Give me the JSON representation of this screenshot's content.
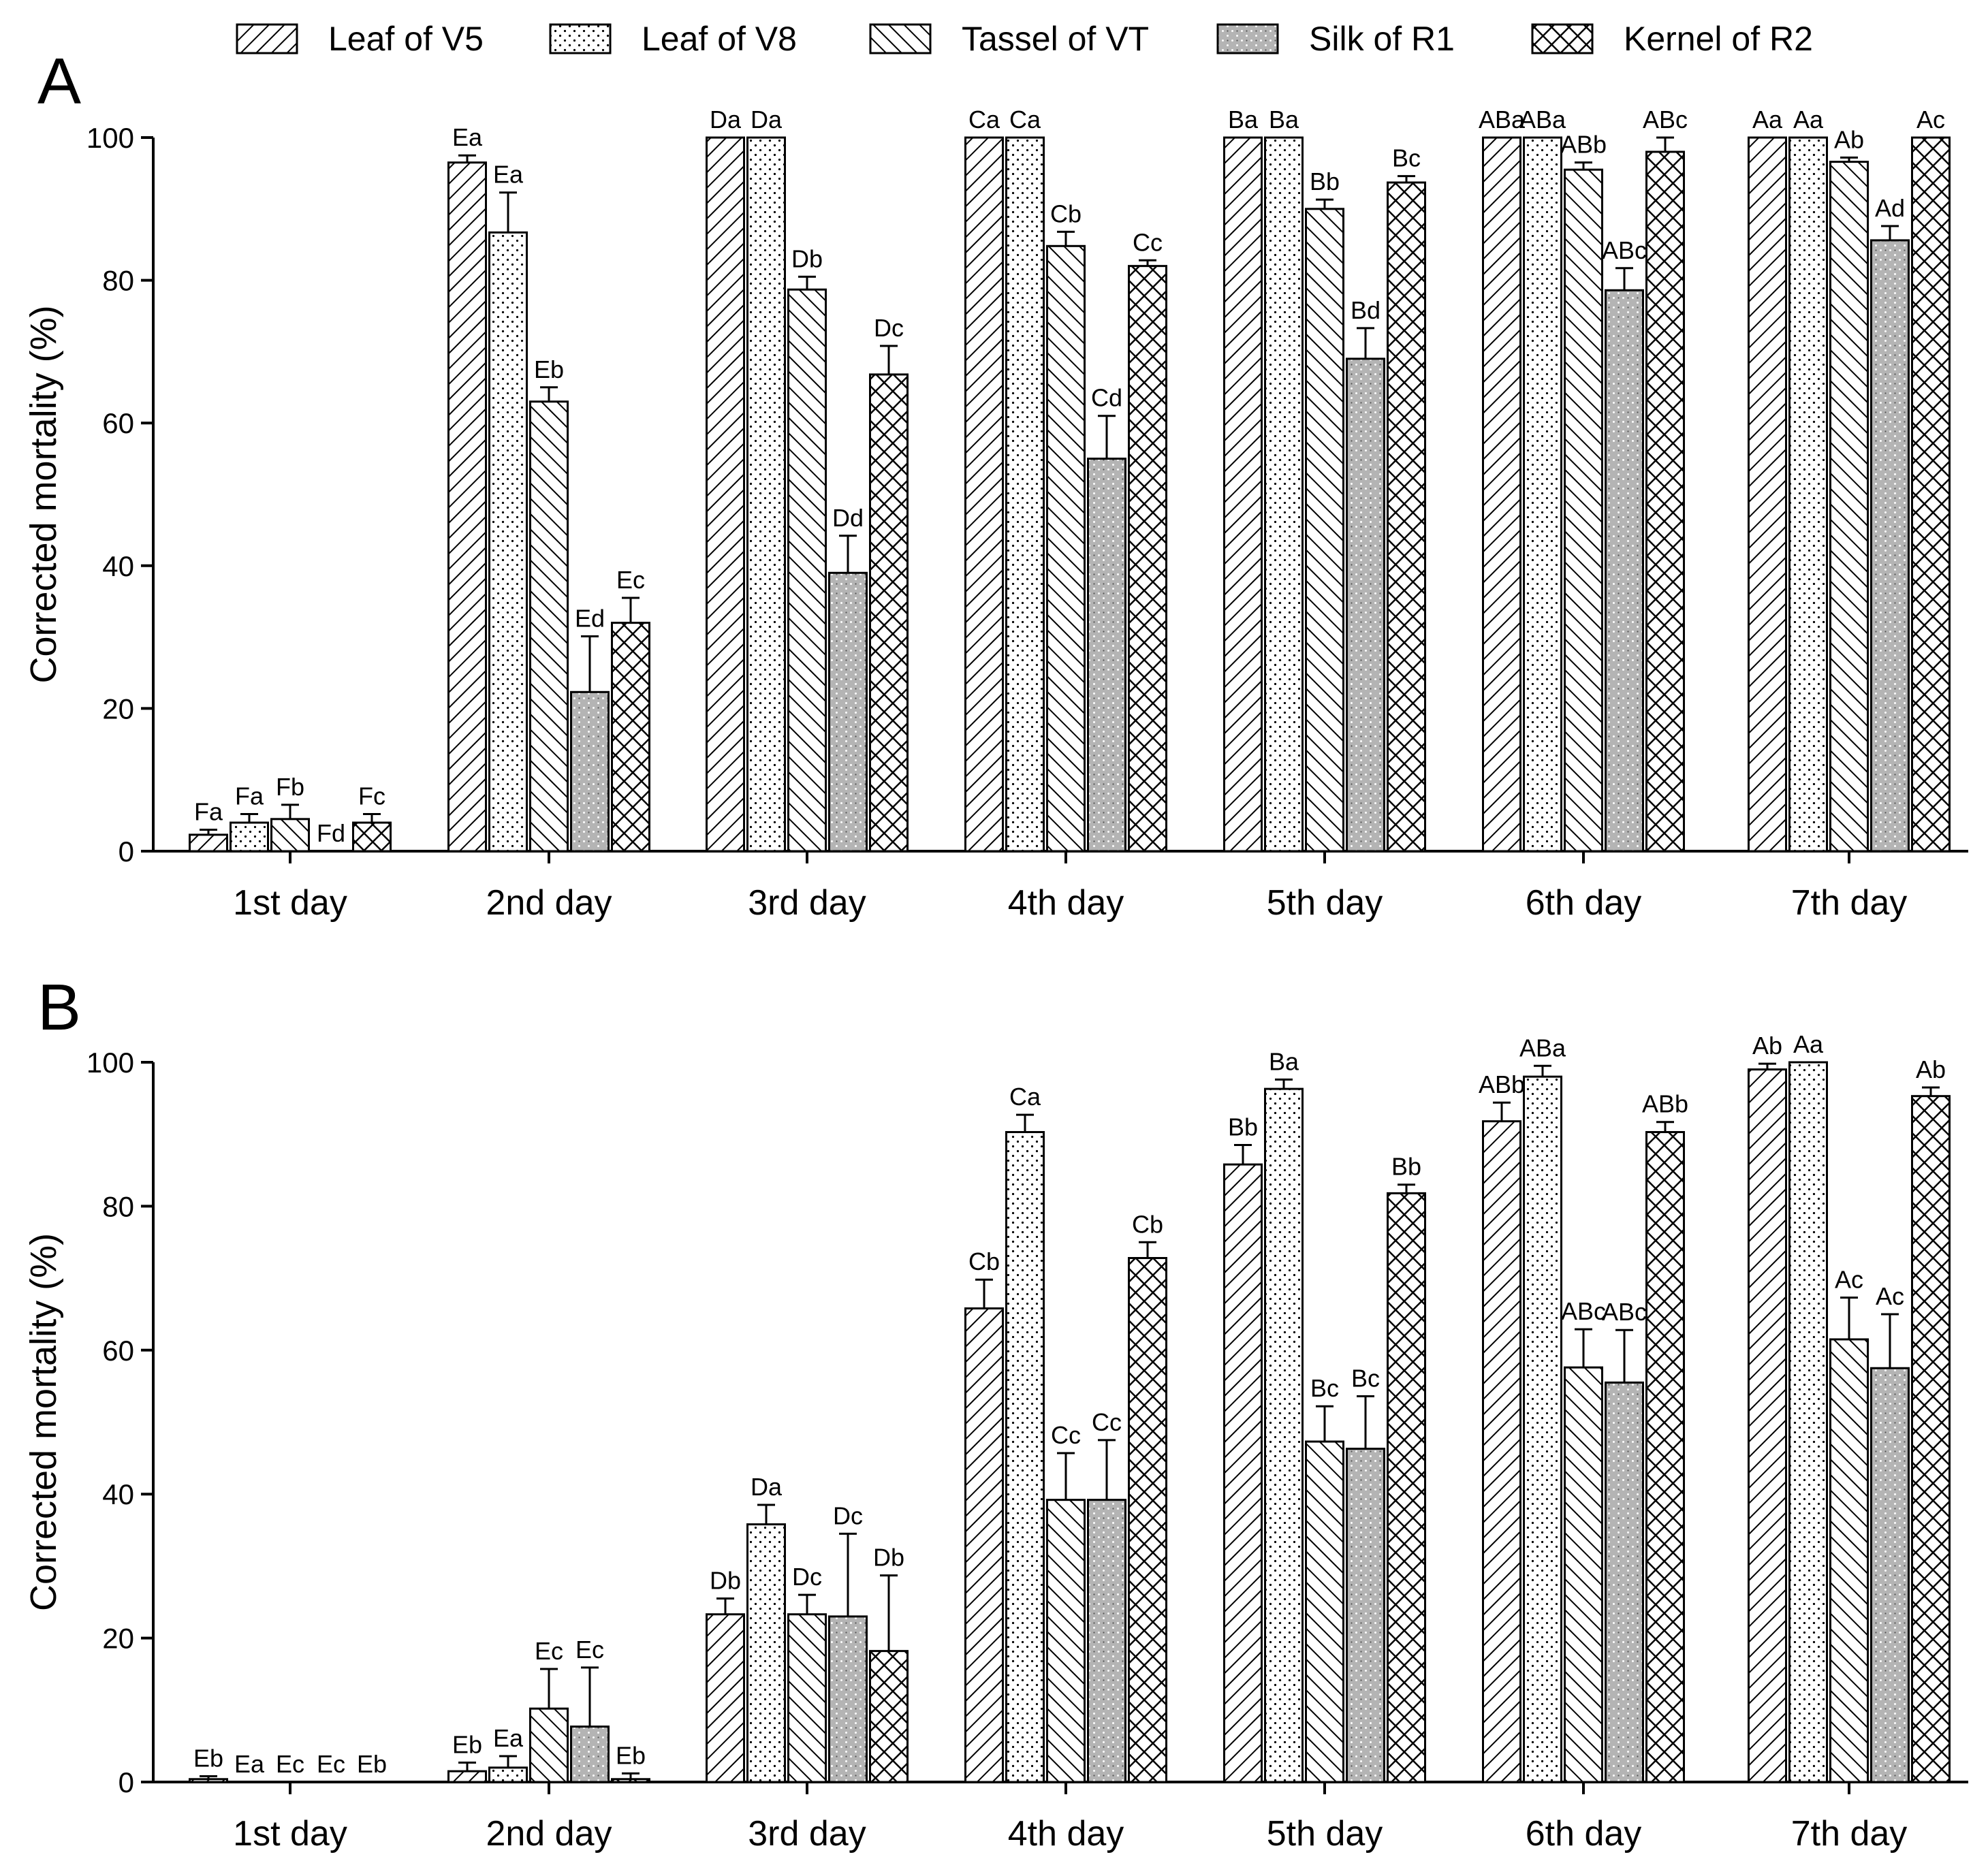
{
  "legend": [
    {
      "name": "Leaf of V5",
      "pattern": "pat-back"
    },
    {
      "name": "Leaf of V8",
      "pattern": "pat-dots"
    },
    {
      "name": "Tassel of VT",
      "pattern": "pat-fwd"
    },
    {
      "name": "Silk of R1",
      "pattern": "pat-silk"
    },
    {
      "name": "Kernel of R2",
      "pattern": "pat-cross"
    }
  ],
  "colors": {
    "axis": "#000000",
    "silk_fill": "#b4b4b4",
    "background": "#ffffff"
  },
  "chart_data": [
    {
      "type": "bar",
      "panel": "A",
      "ylabel": "Corrected mortality (%)",
      "ylim": [
        0,
        100
      ],
      "yticks": [
        "0",
        "20",
        "40",
        "60",
        "80",
        "100"
      ],
      "categories": [
        "1st day",
        "2nd day",
        "3rd day",
        "4th day",
        "5th day",
        "6th day",
        "7th day"
      ],
      "series": [
        {
          "name": "Leaf of V5",
          "values": [
            2.3,
            96.5,
            100,
            100,
            100,
            100,
            100
          ],
          "errors": [
            0.7,
            1.0,
            0,
            0,
            0,
            0,
            0
          ],
          "labels": [
            "Fa",
            "Ea",
            "Da",
            "Ca",
            "Ba",
            "ABa",
            "Aa"
          ]
        },
        {
          "name": "Leaf of V8",
          "values": [
            4.0,
            86.7,
            100,
            100,
            100,
            100,
            100
          ],
          "errors": [
            1.2,
            5.6,
            0,
            0,
            0,
            0,
            0
          ],
          "labels": [
            "Fa",
            "Ea",
            "Da",
            "Ca",
            "Ba",
            "ABa",
            "Aa"
          ]
        },
        {
          "name": "Tassel of VT",
          "values": [
            4.5,
            63.0,
            78.7,
            84.8,
            90.0,
            95.5,
            96.6
          ],
          "errors": [
            2.0,
            2.0,
            1.8,
            2.0,
            1.3,
            1.0,
            0.6
          ],
          "labels": [
            "Fb",
            "Eb",
            "Db",
            "Cb",
            "Bb",
            "ABb",
            "Ab"
          ]
        },
        {
          "name": "Silk of R1",
          "values": [
            0,
            22.3,
            39.0,
            55.0,
            69.0,
            78.6,
            85.6
          ],
          "errors": [
            0,
            7.8,
            5.2,
            6.0,
            4.3,
            3.1,
            2.0
          ],
          "labels": [
            "Fd",
            "Ed",
            "Dd",
            "Cd",
            "Bd",
            "ABc",
            "Ad"
          ]
        },
        {
          "name": "Kernel of R2",
          "values": [
            4.0,
            32.0,
            66.8,
            82.0,
            93.7,
            98.0,
            100
          ],
          "errors": [
            1.2,
            3.5,
            4.0,
            0.8,
            0.9,
            2.0,
            0
          ],
          "labels": [
            "Fc",
            "Ec",
            "Dc",
            "Cc",
            "Bc",
            "ABc",
            "Ac"
          ]
        }
      ]
    },
    {
      "type": "bar",
      "panel": "B",
      "ylabel": "Corrected mortality (%)",
      "ylim": [
        0,
        100
      ],
      "yticks": [
        "0",
        "20",
        "40",
        "60",
        "80",
        "100"
      ],
      "categories": [
        "1st day",
        "2nd day",
        "3rd day",
        "4th day",
        "5th day",
        "6th day",
        "7th day"
      ],
      "series": [
        {
          "name": "Leaf of V5",
          "values": [
            0.4,
            1.5,
            23.3,
            65.8,
            85.8,
            91.8,
            99.0
          ],
          "errors": [
            0.4,
            1.2,
            2.2,
            4.0,
            2.7,
            2.6,
            0.8
          ],
          "labels": [
            "Eb",
            "Eb",
            "Db",
            "Cb",
            "Bb",
            "ABb",
            "Ab"
          ]
        },
        {
          "name": "Leaf of V8",
          "values": [
            0,
            2.0,
            35.8,
            90.3,
            96.3,
            98.0,
            100
          ],
          "errors": [
            0,
            1.6,
            2.7,
            2.4,
            1.3,
            1.5,
            0
          ],
          "labels": [
            "Ea",
            "Ea",
            "Da",
            "Ca",
            "Ba",
            "ABa",
            "Aa"
          ]
        },
        {
          "name": "Tassel of VT",
          "values": [
            0,
            10.2,
            23.3,
            39.2,
            47.3,
            57.6,
            61.5
          ],
          "errors": [
            0,
            5.5,
            2.7,
            6.5,
            4.9,
            5.3,
            5.8
          ],
          "labels": [
            "Ec",
            "Ec",
            "Dc",
            "Cc",
            "Bc",
            "ABc",
            "Ac"
          ]
        },
        {
          "name": "Silk of R1",
          "values": [
            0,
            7.7,
            23.0,
            39.2,
            46.3,
            55.5,
            57.5
          ],
          "errors": [
            0,
            8.2,
            11.5,
            8.3,
            7.3,
            7.3,
            7.5
          ],
          "labels": [
            "Ec",
            "Ec",
            "Dc",
            "Cc",
            "Bc",
            "ABc",
            "Ac"
          ]
        },
        {
          "name": "Kernel of R2",
          "values": [
            0,
            0.4,
            18.2,
            72.8,
            81.8,
            90.3,
            95.3
          ],
          "errors": [
            0,
            0.8,
            10.5,
            2.2,
            1.2,
            1.4,
            1.2
          ],
          "labels": [
            "Eb",
            "Eb",
            "Db",
            "Cb",
            "Bb",
            "ABb",
            "Ab"
          ]
        }
      ]
    }
  ]
}
